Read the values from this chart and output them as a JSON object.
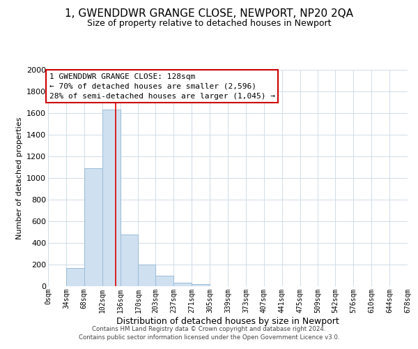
{
  "title": "1, GWENDDWR GRANGE CLOSE, NEWPORT, NP20 2QA",
  "subtitle": "Size of property relative to detached houses in Newport",
  "xlabel": "Distribution of detached houses by size in Newport",
  "ylabel": "Number of detached properties",
  "bar_color": "#cfe0f0",
  "bar_edge_color": "#9bbcd8",
  "vline_x": 128,
  "vline_color": "#dd0000",
  "annotation_lines": [
    "1 GWENDDWR GRANGE CLOSE: 128sqm",
    "← 70% of detached houses are smaller (2,596)",
    "28% of semi-detached houses are larger (1,045) →"
  ],
  "bin_edges": [
    0,
    34,
    68,
    102,
    136,
    170,
    203,
    237,
    271,
    305,
    339,
    373,
    407,
    441,
    475,
    509,
    542,
    576,
    610,
    644,
    678
  ],
  "bin_counts": [
    0,
    165,
    1090,
    1630,
    480,
    200,
    100,
    35,
    20,
    0,
    0,
    0,
    0,
    0,
    0,
    0,
    0,
    0,
    0,
    0
  ],
  "ylim": [
    0,
    2000
  ],
  "yticks": [
    0,
    200,
    400,
    600,
    800,
    1000,
    1200,
    1400,
    1600,
    1800,
    2000
  ],
  "tick_labels": [
    "0sqm",
    "34sqm",
    "68sqm",
    "102sqm",
    "136sqm",
    "170sqm",
    "203sqm",
    "237sqm",
    "271sqm",
    "305sqm",
    "339sqm",
    "373sqm",
    "407sqm",
    "441sqm",
    "475sqm",
    "509sqm",
    "542sqm",
    "576sqm",
    "610sqm",
    "644sqm",
    "678sqm"
  ],
  "footer_line1": "Contains HM Land Registry data © Crown copyright and database right 2024.",
  "footer_line2": "Contains public sector information licensed under the Open Government Licence v3.0.",
  "annotation_box_color": "#ffffff",
  "annotation_box_edge": "#cc0000",
  "grid_color": "#d0dce8",
  "title_fontsize": 11,
  "subtitle_fontsize": 9,
  "xlabel_fontsize": 9,
  "ylabel_fontsize": 8
}
